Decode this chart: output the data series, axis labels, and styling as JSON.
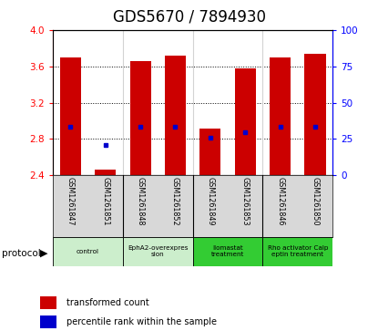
{
  "title": "GDS5670 / 7894930",
  "samples": [
    "GSM1261847",
    "GSM1261851",
    "GSM1261848",
    "GSM1261852",
    "GSM1261849",
    "GSM1261853",
    "GSM1261846",
    "GSM1261850"
  ],
  "bar_tops": [
    3.7,
    2.46,
    3.66,
    3.72,
    2.91,
    3.58,
    3.7,
    3.74
  ],
  "bar_bottom": 2.4,
  "blue_dots": [
    2.93,
    2.73,
    2.93,
    2.93,
    2.81,
    2.87,
    2.93,
    2.93
  ],
  "ylim": [
    2.4,
    4.0
  ],
  "yticks_left": [
    2.4,
    2.8,
    3.2,
    3.6,
    4.0
  ],
  "yticks_right": [
    0,
    25,
    50,
    75,
    100
  ],
  "bar_color": "#cc0000",
  "dot_color": "#0000cc",
  "protocol_groups": [
    {
      "label": "control",
      "start": 0,
      "end": 1,
      "color": "#cceecc"
    },
    {
      "label": "EphA2-overexpres\nsion",
      "start": 2,
      "end": 3,
      "color": "#cceecc"
    },
    {
      "label": "Ilomastat\ntreatment",
      "start": 4,
      "end": 5,
      "color": "#33cc33"
    },
    {
      "label": "Rho activator Calp\neptin treatment",
      "start": 6,
      "end": 7,
      "color": "#33cc33"
    }
  ],
  "group_borders": [
    1.5,
    3.5,
    5.5
  ],
  "legend_entries": [
    "transformed count",
    "percentile rank within the sample"
  ],
  "title_fontsize": 12
}
